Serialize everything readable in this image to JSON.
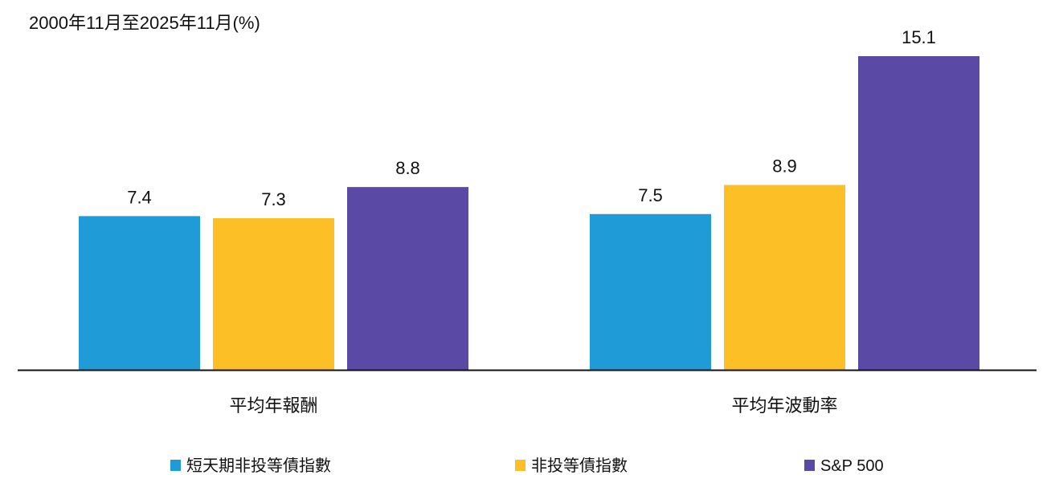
{
  "chart_data": {
    "type": "bar",
    "title": "2000年11月至2025年11月(%)",
    "categories": [
      "平均年報酬",
      "平均年波動率"
    ],
    "series": [
      {
        "name": "短天期非投等債指數",
        "color": "#1f9bd7",
        "values": [
          7.4,
          7.5
        ]
      },
      {
        "name": "非投等債指數",
        "color": "#fdbf26",
        "values": [
          7.3,
          8.9
        ]
      },
      {
        "name": "S&P 500",
        "color": "#5a4aa6",
        "values": [
          8.8,
          15.1
        ]
      }
    ],
    "ylim": [
      0,
      15.1
    ],
    "grid": false,
    "legend_position": "bottom"
  }
}
